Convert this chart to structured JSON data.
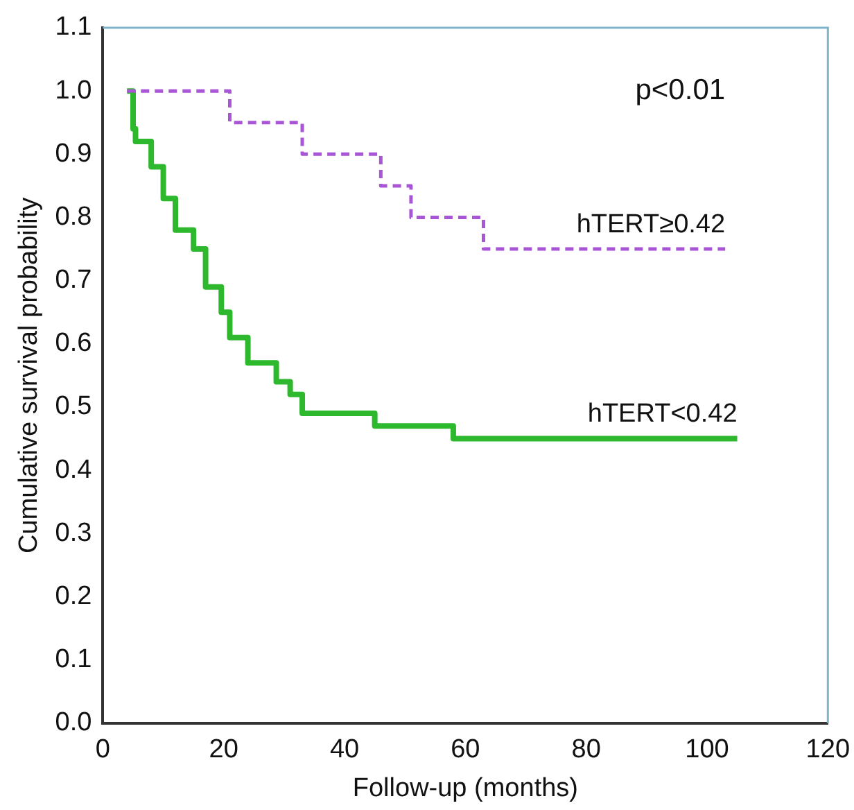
{
  "chart_data": {
    "type": "step",
    "xlabel": "Follow-up (months)",
    "ylabel": "Cumulative survival probability",
    "annotations": [
      "p<0.01"
    ],
    "xlim": [
      0,
      120
    ],
    "xticks": [
      0,
      20,
      40,
      60,
      80,
      100,
      120
    ],
    "ylim": [
      0,
      1.1
    ],
    "yticks": [
      {
        "value": 0,
        "label": "0.0"
      },
      {
        "value": 0.1,
        "label": "0.1"
      },
      {
        "value": 0.2,
        "label": "0.2"
      },
      {
        "value": 0.3,
        "label": "0.3"
      },
      {
        "value": 0.4,
        "label": "0.4"
      },
      {
        "value": 0.5,
        "label": "0.5"
      },
      {
        "value": 0.6,
        "label": "0.6"
      },
      {
        "value": 0.7,
        "label": "0.7"
      },
      {
        "value": 0.8,
        "label": "0.8"
      },
      {
        "value": 0.9,
        "label": "0.9"
      },
      {
        "value": 1,
        "label": "1.0"
      },
      {
        "value": 1.1,
        "label": "1.1"
      }
    ],
    "grid": false,
    "legend": false,
    "marker": "none",
    "series": [
      {
        "name": "hTERT≥0.42",
        "color": "#a855d6",
        "line_style": "dashed",
        "x": [
          4,
          21,
          33,
          46,
          51,
          63,
          103
        ],
        "values": [
          1.0,
          0.95,
          0.9,
          0.85,
          0.8,
          0.75,
          0.75
        ]
      },
      {
        "name": "hTERT<0.42",
        "color": "#2eb82e",
        "line_style": "solid",
        "x": [
          4,
          5,
          5.4,
          8,
          10,
          12,
          15,
          17,
          19.6,
          21,
          24,
          28.7,
          31,
          33,
          45,
          58,
          105
        ],
        "values": [
          1.0,
          0.94,
          0.92,
          0.88,
          0.83,
          0.78,
          0.75,
          0.69,
          0.65,
          0.61,
          0.57,
          0.54,
          0.52,
          0.49,
          0.47,
          0.45,
          0.45
        ]
      }
    ]
  }
}
